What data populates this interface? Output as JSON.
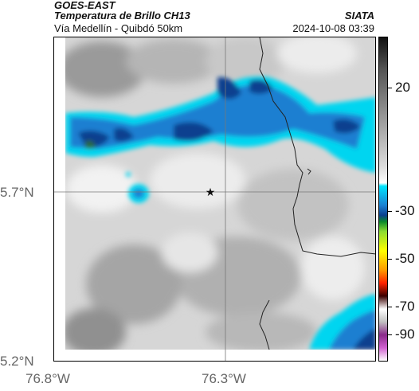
{
  "header": {
    "satellite": "GOES-EAST",
    "product": "Temperatura de Brillo CH13",
    "route": "Vía Medellín - Quibdó 50km",
    "agency": "SIATA",
    "datetime": "2024-10-08 03:39"
  },
  "map": {
    "lat_labels": [
      "5.7°N",
      "5.2°N"
    ],
    "lon_labels": [
      "76.8°W",
      "76.3°W"
    ],
    "marker_icon": "star-icon",
    "colors": {
      "cloud_cold": "#0a3f8f",
      "cloud_mid": "#1b7fd1",
      "cloud_edge": "#00d5f0",
      "background_warm": "#d8d8d8",
      "border_line": "#222222"
    }
  },
  "colorbar": {
    "labels": [
      "20",
      "-30",
      "-50",
      "-70",
      "-90"
    ]
  }
}
